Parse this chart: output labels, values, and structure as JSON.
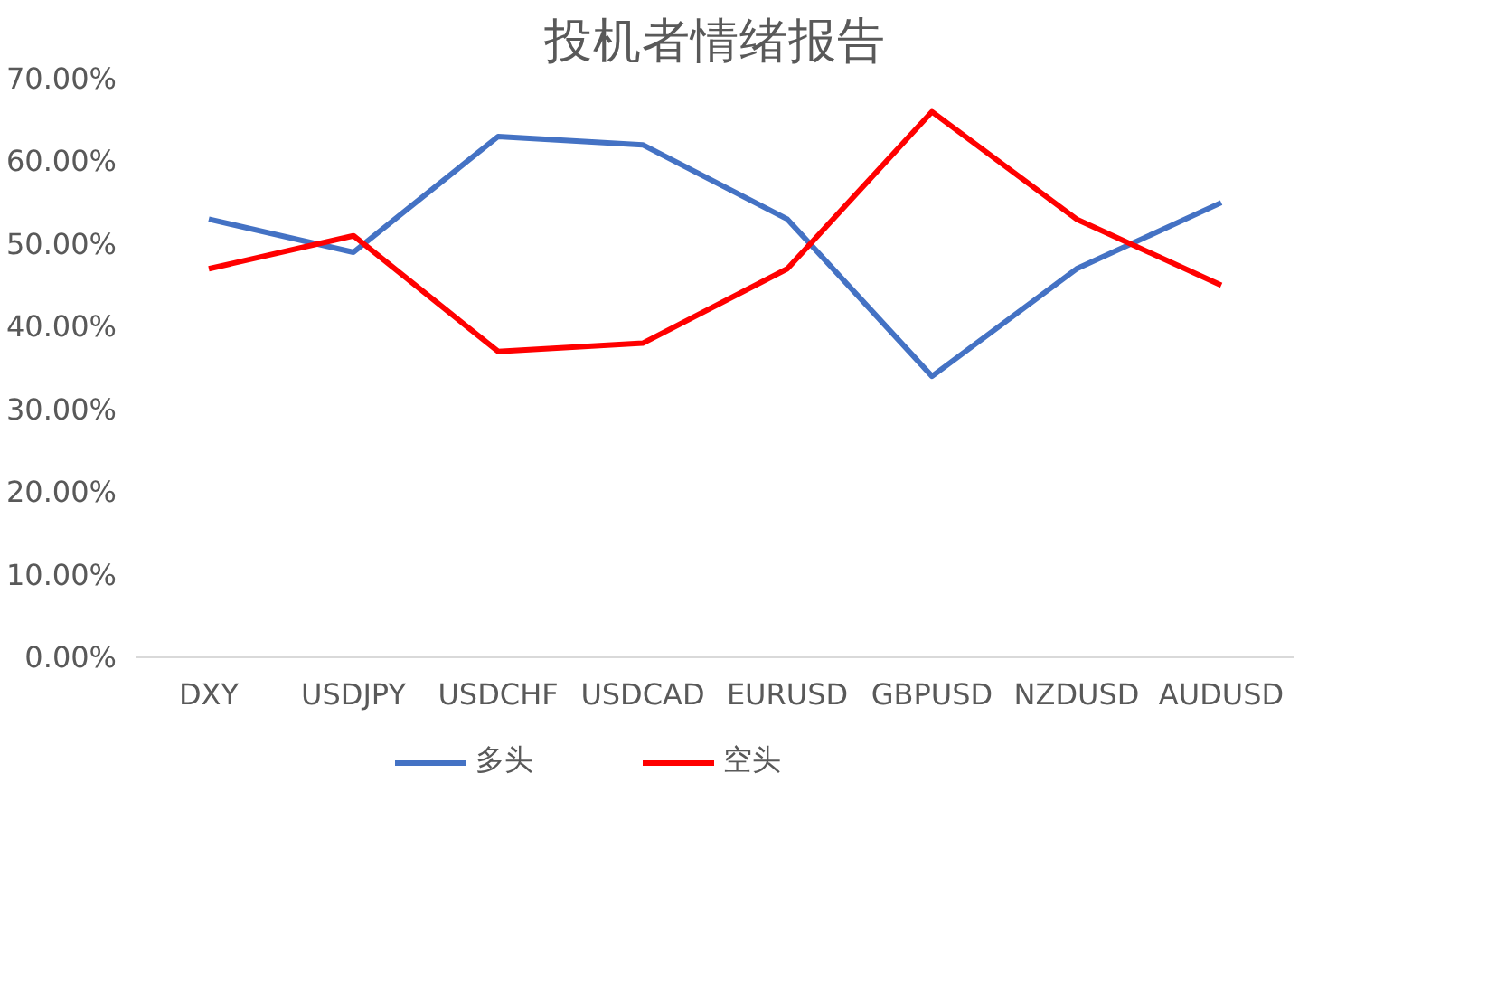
{
  "chart_data": {
    "type": "line",
    "title": "投机者情绪报告",
    "categories": [
      "DXY",
      "USDJPY",
      "USDCHF",
      "USDCAD",
      "EURUSD",
      "GBPUSD",
      "NZDUSD",
      "AUDUSD"
    ],
    "series": [
      {
        "name": "多头",
        "color": "#4472c4",
        "values": [
          53,
          49,
          63,
          62,
          53,
          34,
          47,
          55
        ]
      },
      {
        "name": "空头",
        "color": "#ff0000",
        "values": [
          47,
          51,
          37,
          38,
          47,
          66,
          53,
          45
        ]
      }
    ],
    "ylim": [
      0,
      70
    ],
    "yticks": [
      {
        "value": 0,
        "label": "0.00%"
      },
      {
        "value": 10,
        "label": "10.00%"
      },
      {
        "value": 20,
        "label": "20.00%"
      },
      {
        "value": 30,
        "label": "30.00%"
      },
      {
        "value": 40,
        "label": "40.00%"
      },
      {
        "value": 50,
        "label": "50.00%"
      },
      {
        "value": 60,
        "label": "60.00%"
      },
      {
        "value": 70,
        "label": "70.00%"
      }
    ],
    "grid": false,
    "legend": "bottom",
    "marker": "none",
    "line_style": "solid"
  }
}
